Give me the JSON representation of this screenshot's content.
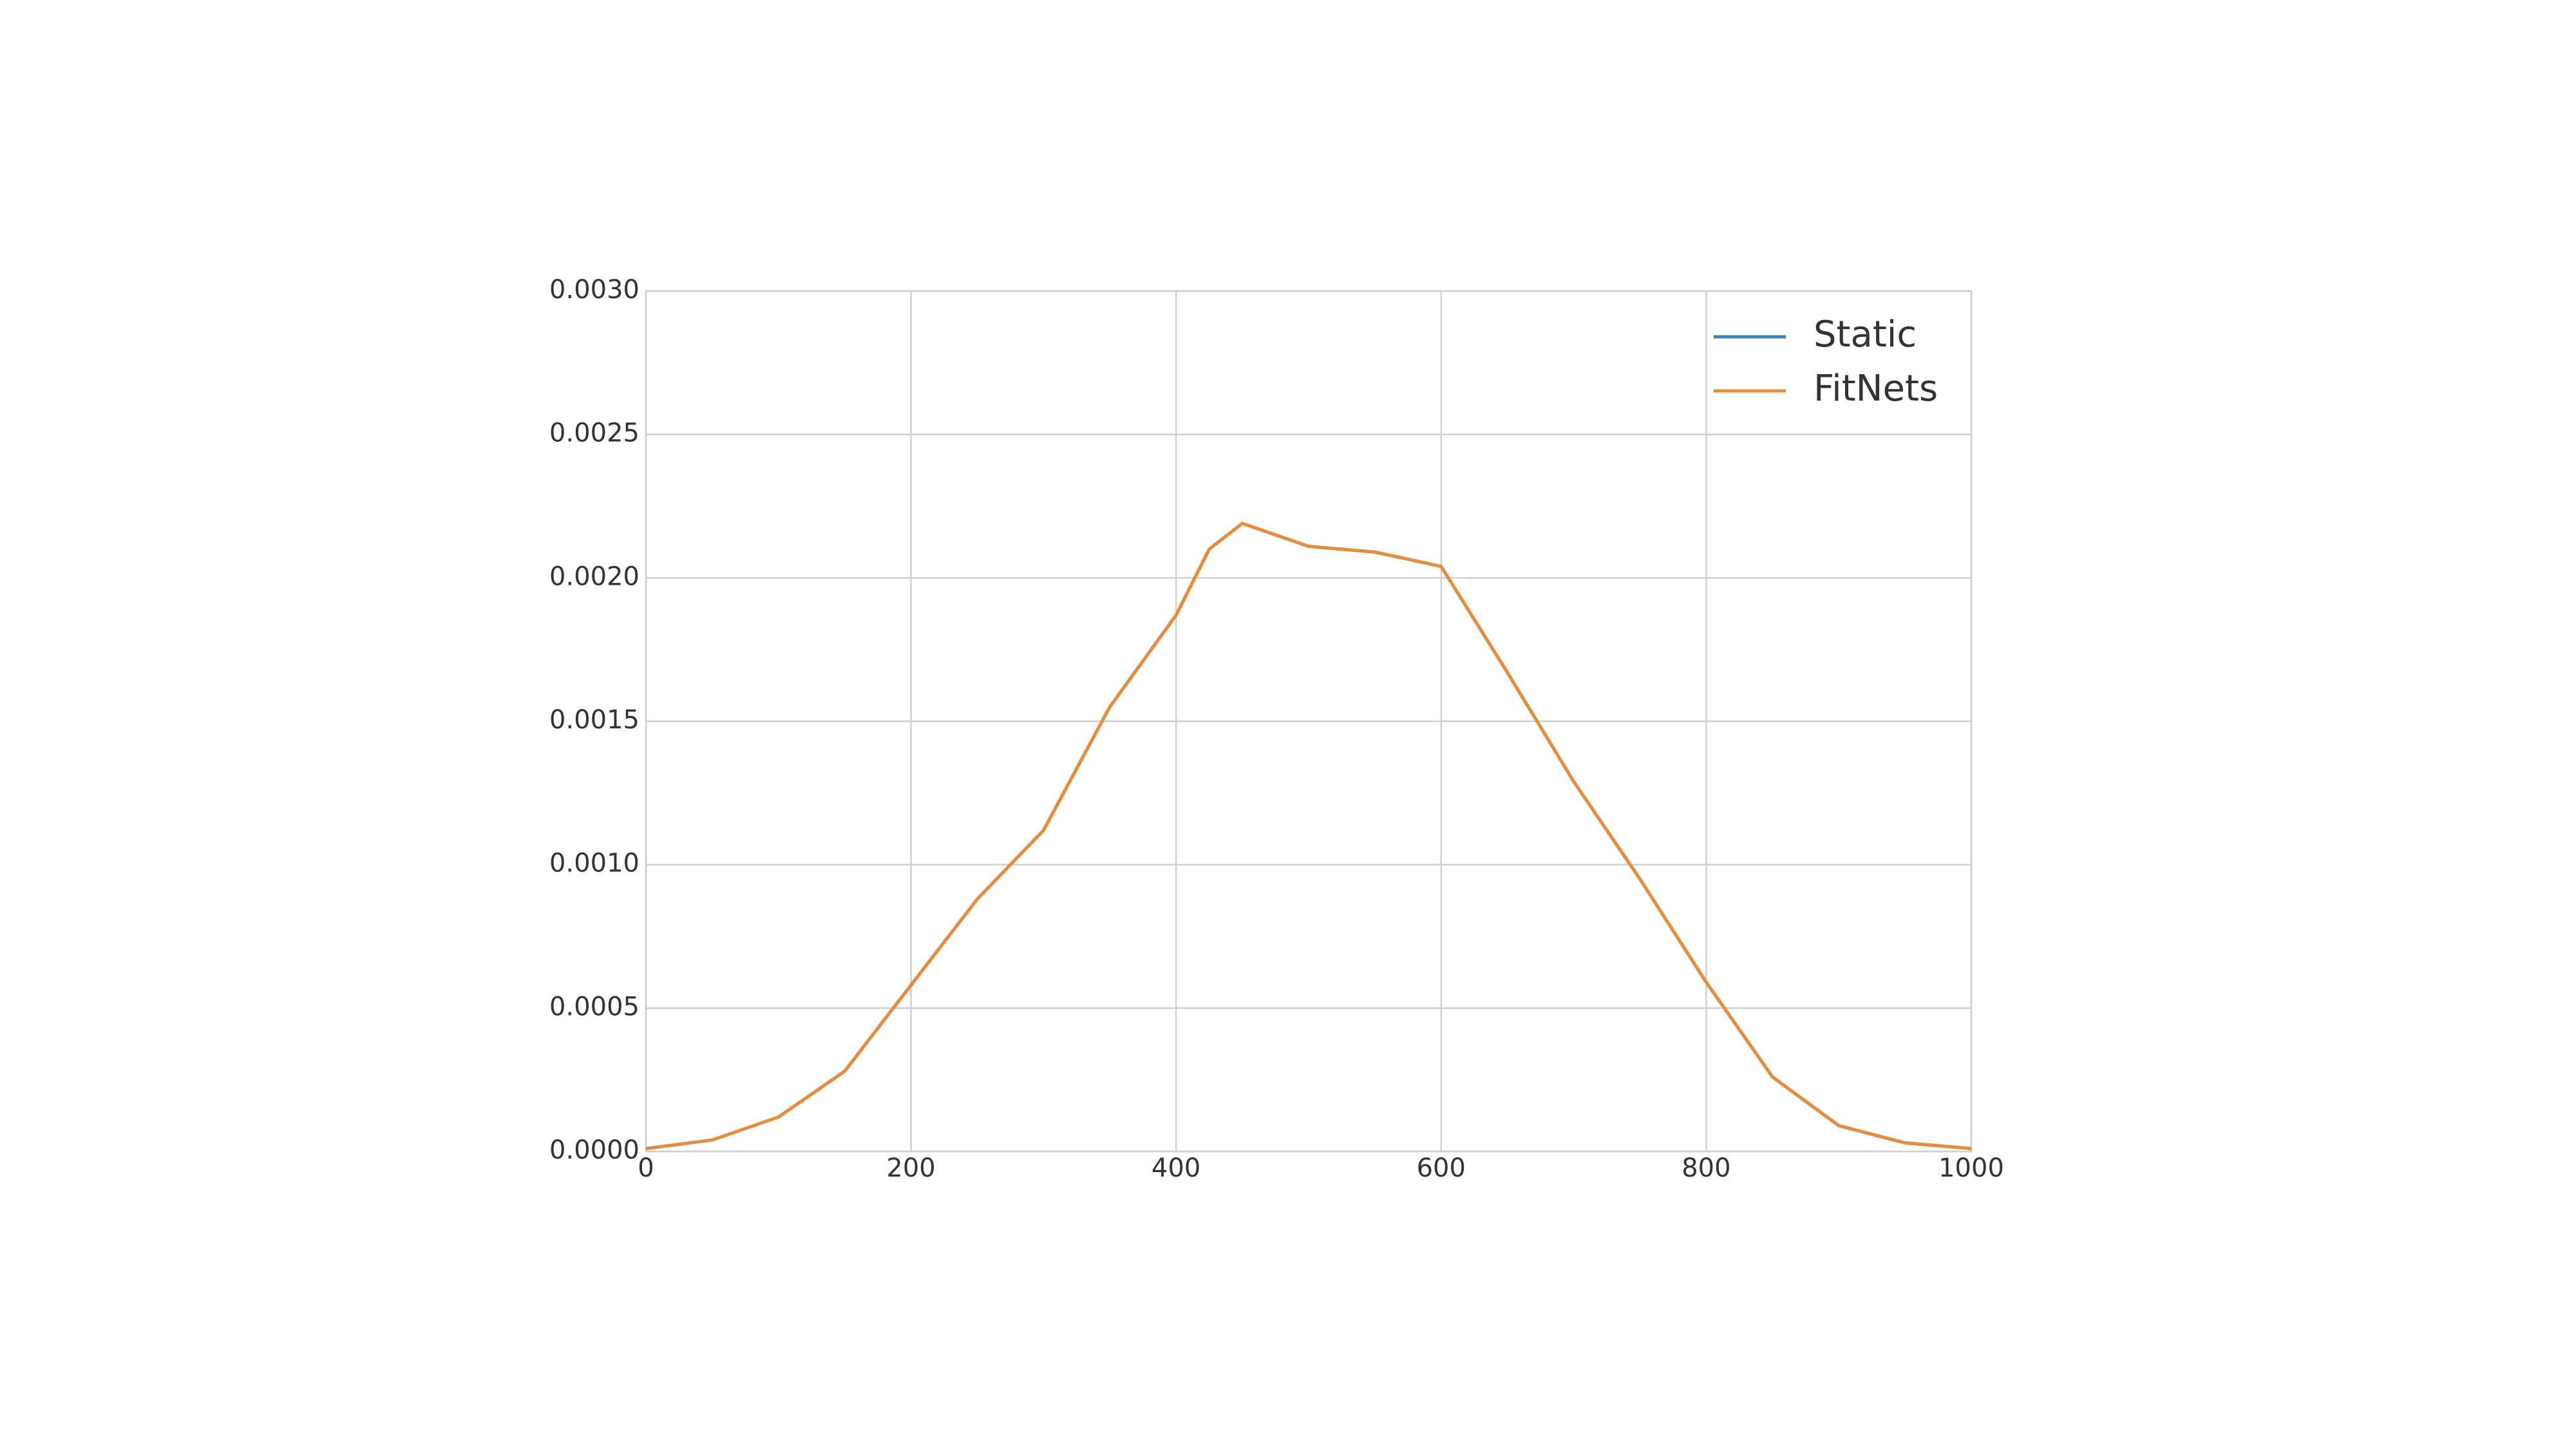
{
  "chart_data": {
    "type": "line",
    "x": [
      0,
      50,
      100,
      150,
      200,
      250,
      300,
      350,
      400,
      425,
      450,
      500,
      550,
      600,
      650,
      700,
      750,
      800,
      850,
      900,
      950,
      1000
    ],
    "series": [
      {
        "name": "Static",
        "color": "#3b80c0",
        "values": [
          1e-05,
          4e-05,
          0.00012,
          0.00028,
          0.00058,
          0.00088,
          0.00112,
          0.00155,
          0.00187,
          0.0021,
          0.00219,
          0.00211,
          0.00209,
          0.00204,
          0.00167,
          0.00129,
          0.00095,
          0.00059,
          0.00026,
          9e-05,
          3e-05,
          1e-05
        ]
      },
      {
        "name": "FitNets",
        "color": "#e88c3a",
        "values": [
          1e-05,
          4e-05,
          0.00012,
          0.00028,
          0.00058,
          0.00088,
          0.00112,
          0.00155,
          0.00187,
          0.0021,
          0.00219,
          0.00211,
          0.00209,
          0.00204,
          0.00167,
          0.00129,
          0.00095,
          0.00059,
          0.00026,
          9e-05,
          3e-05,
          1e-05
        ]
      }
    ],
    "xlim": [
      0,
      1000
    ],
    "xticks": [
      0,
      200,
      400,
      600,
      800,
      1000
    ],
    "ylim": [
      0,
      0.003
    ],
    "yticks": [
      {
        "value": 0,
        "label": "0.0000"
      },
      {
        "value": 0.0005,
        "label": "0.0005"
      },
      {
        "value": 0.001,
        "label": "0.0010"
      },
      {
        "value": 0.0015,
        "label": "0.0015"
      },
      {
        "value": 0.002,
        "label": "0.0020"
      },
      {
        "value": 0.0025,
        "label": "0.0025"
      },
      {
        "value": 0.003,
        "label": "0.0030"
      }
    ],
    "grid": true,
    "legend": "upper right"
  }
}
